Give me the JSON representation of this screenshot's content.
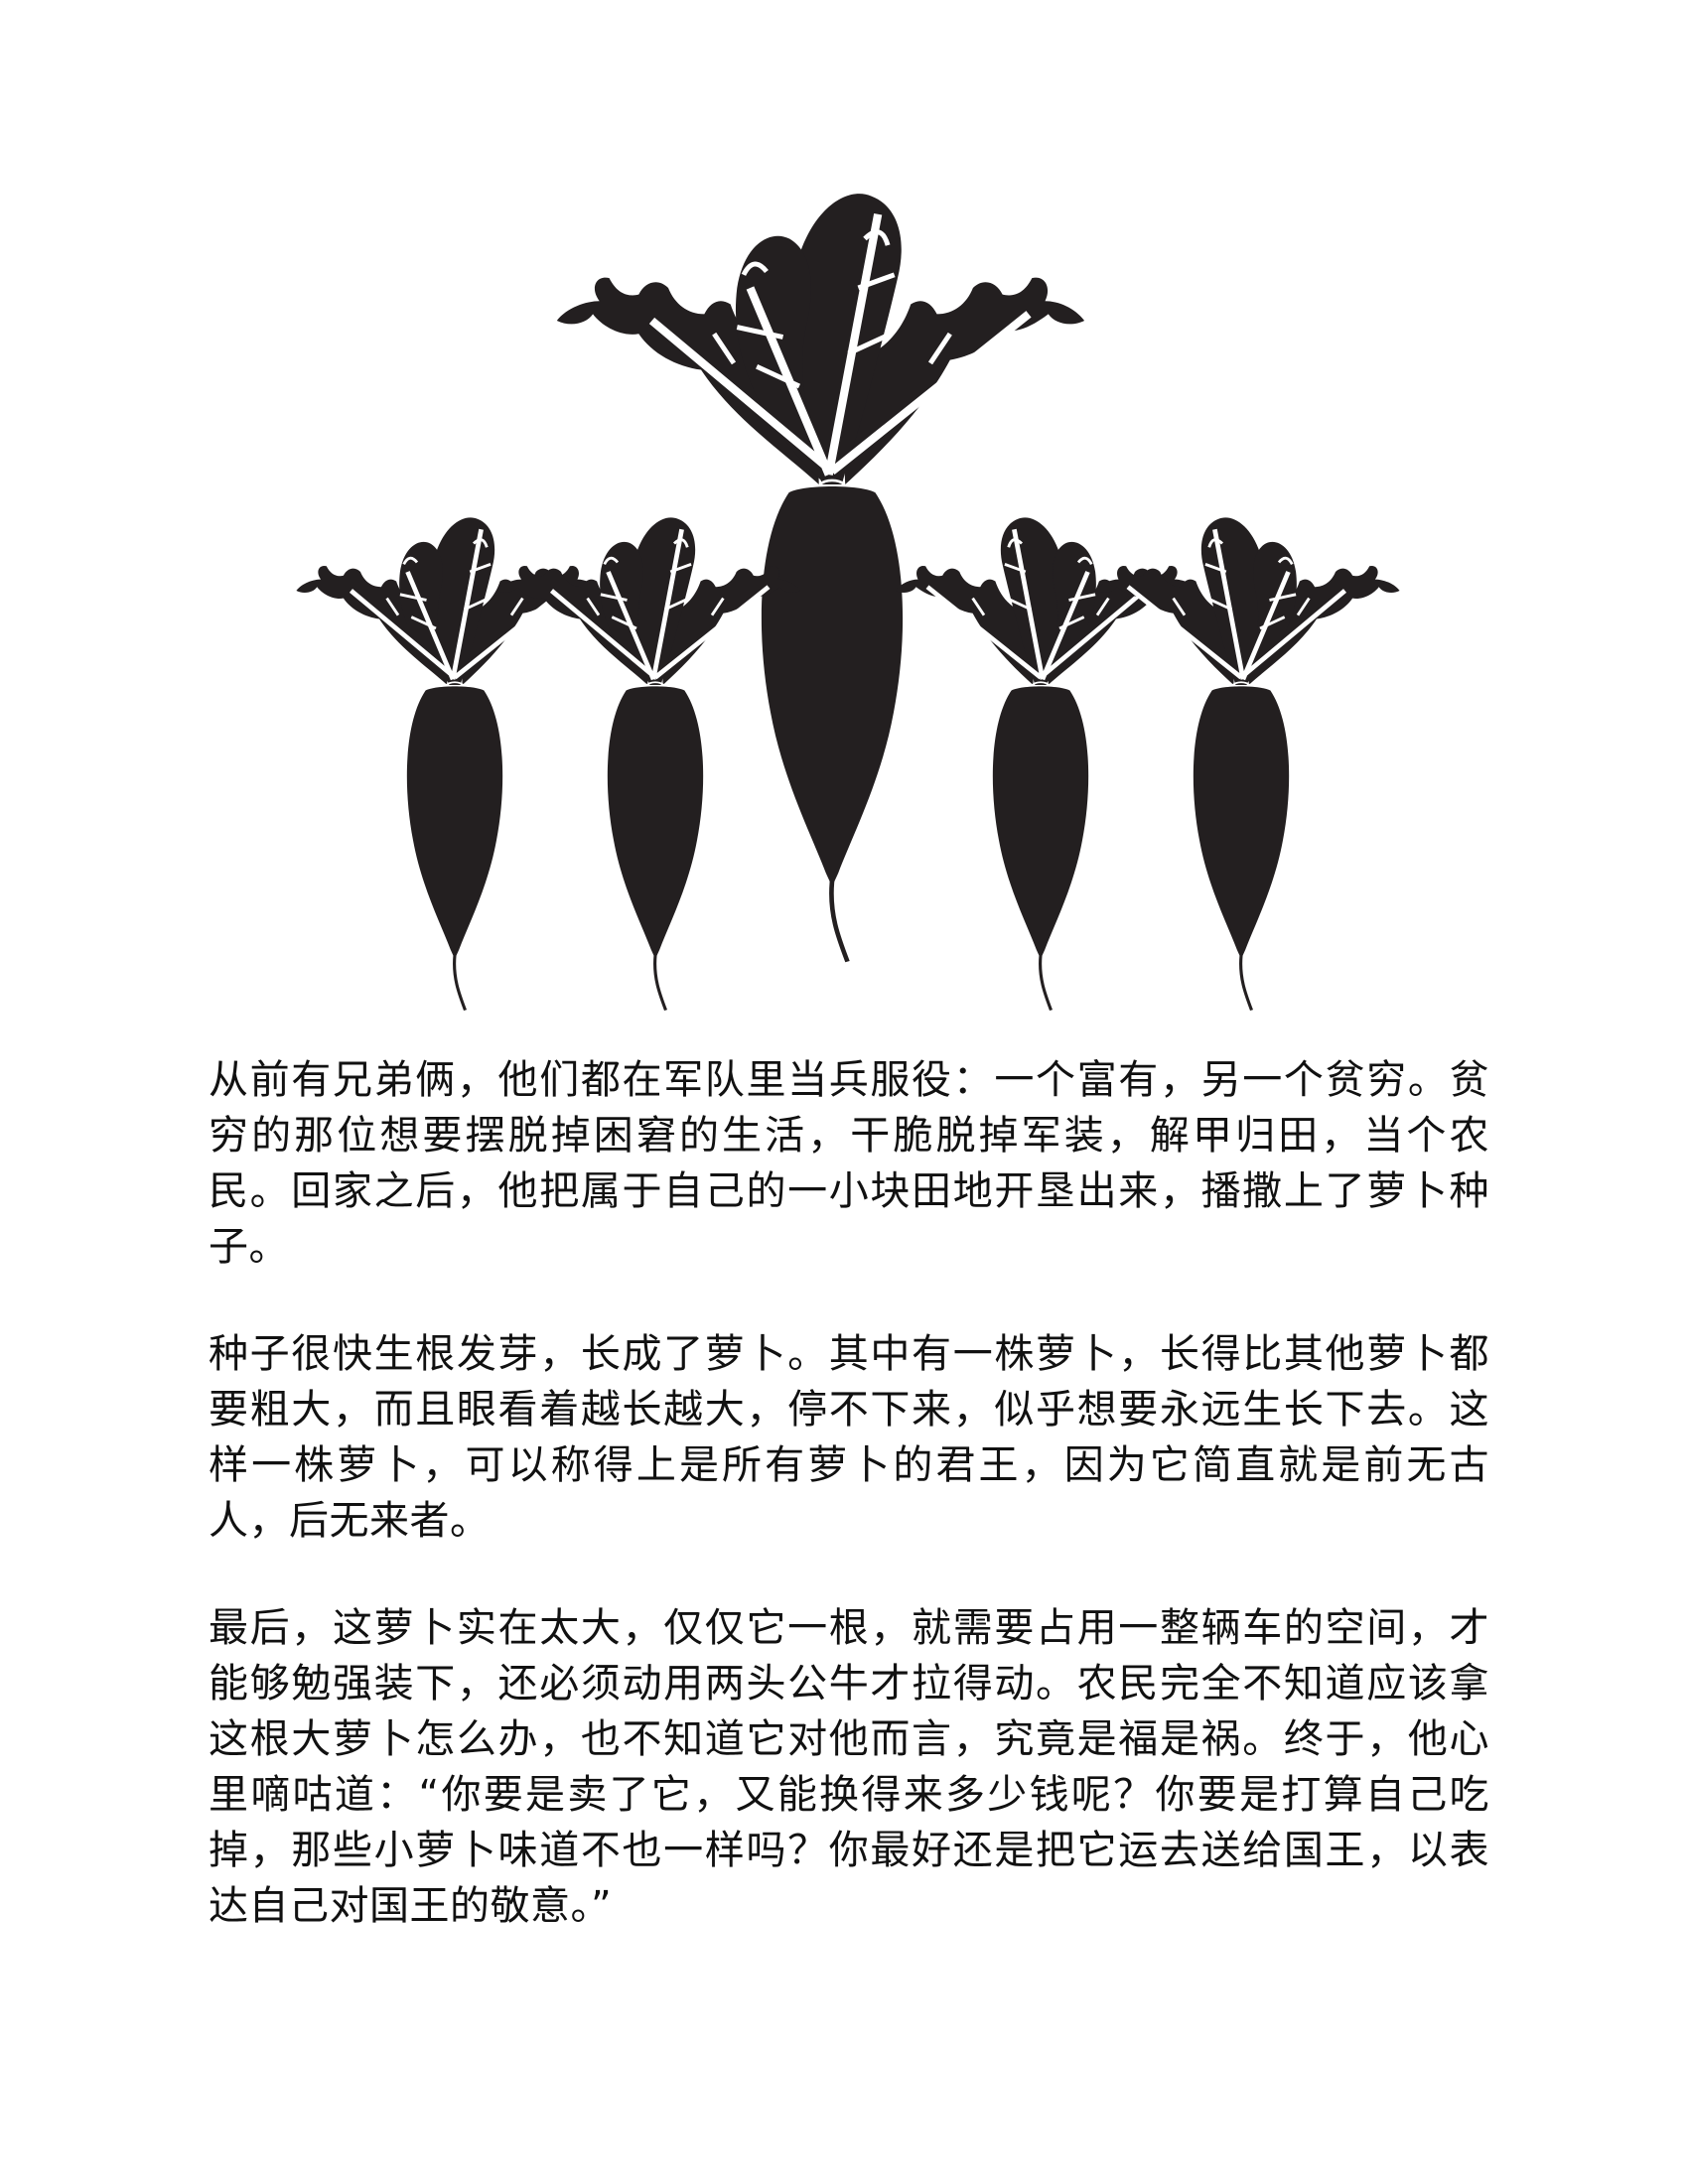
{
  "illustration": {
    "subject": "radish silhouettes",
    "count": 5,
    "ink_color": "#231f20",
    "background_color": "#ffffff"
  },
  "story": {
    "paragraphs": [
      "从前有兄弟俩，他们都在军队里当兵服役：一个富有，另一个贫穷。贫穷的那位想要摆脱掉困窘的生活，干脆脱掉军装，解甲归田，当个农民。回家之后，他把属于自己的一小块田地开垦出来，播撒上了萝卜种子。",
      "种子很快生根发芽，长成了萝卜。其中有一株萝卜，长得比其他萝卜都要粗大，而且眼看着越长越大，停不下来，似乎想要永远生长下去。这样一株萝卜，可以称得上是所有萝卜的君王，因为它简直就是前无古人，后无来者。",
      "最后，这萝卜实在太大，仅仅它一根，就需要占用一整辆车的空间，才能够勉强装下，还必须动用两头公牛才拉得动。农民完全不知道应该拿这根大萝卜怎么办，也不知道它对他而言，究竟是福是祸。终于，他心里嘀咕道：“你要是卖了它，又能换得来多少钱呢？你要是打算自己吃掉，那些小萝卜味道不也一样吗？你最好还是把它运去送给国王，以表达自己对国王的敬意。”"
    ]
  }
}
